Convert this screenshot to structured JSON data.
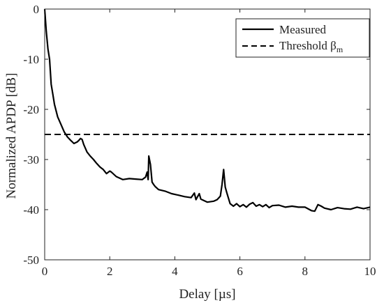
{
  "chart_data": {
    "type": "line",
    "xlabel": "Delay [µs]",
    "ylabel": "Normalized APDP [dB]",
    "xlim": [
      0,
      10
    ],
    "ylim": [
      -50,
      0
    ],
    "xticks": [
      "0",
      "2",
      "4",
      "6",
      "8",
      "10"
    ],
    "yticks": [
      "0",
      "-10",
      "-20",
      "-30",
      "-40",
      "-50"
    ],
    "grid": false,
    "legend_position": "top-right",
    "series": [
      {
        "name": "Measured",
        "style": "solid",
        "color": "#000000",
        "x": [
          0,
          0.05,
          0.1,
          0.15,
          0.2,
          0.25,
          0.3,
          0.4,
          0.5,
          0.6,
          0.7,
          0.8,
          0.9,
          1.0,
          1.05,
          1.1,
          1.15,
          1.2,
          1.3,
          1.4,
          1.5,
          1.6,
          1.7,
          1.8,
          1.9,
          2.0,
          2.05,
          2.2,
          2.4,
          2.6,
          2.8,
          3.0,
          3.1,
          3.15,
          3.18,
          3.2,
          3.25,
          3.3,
          3.35,
          3.4,
          3.5,
          3.7,
          3.9,
          4.1,
          4.3,
          4.5,
          4.6,
          4.65,
          4.7,
          4.75,
          4.8,
          5.0,
          5.2,
          5.3,
          5.4,
          5.45,
          5.5,
          5.55,
          5.6,
          5.7,
          5.8,
          5.9,
          6.0,
          6.1,
          6.2,
          6.3,
          6.4,
          6.5,
          6.6,
          6.7,
          6.8,
          6.9,
          7.0,
          7.2,
          7.4,
          7.6,
          7.8,
          8.0,
          8.2,
          8.3,
          8.4,
          8.5,
          8.6,
          8.8,
          9.0,
          9.2,
          9.4,
          9.6,
          9.8,
          10.0
        ],
        "y": [
          0,
          -4.5,
          -8,
          -10,
          -15,
          -17,
          -19,
          -21.5,
          -23,
          -24.5,
          -25.5,
          -26.2,
          -26.8,
          -26.5,
          -26.2,
          -25.8,
          -26.0,
          -27.0,
          -28.5,
          -29.3,
          -30.0,
          -30.8,
          -31.5,
          -32.0,
          -32.8,
          -32.3,
          -32.5,
          -33.4,
          -34.0,
          -33.8,
          -33.9,
          -34.0,
          -33.5,
          -32.5,
          -34.0,
          -29.3,
          -31.0,
          -34.5,
          -35.0,
          -35.4,
          -36.0,
          -36.3,
          -36.8,
          -37.1,
          -37.4,
          -37.6,
          -36.7,
          -38.0,
          -37.4,
          -36.8,
          -37.9,
          -38.5,
          -38.3,
          -38.0,
          -37.3,
          -35.0,
          -32.0,
          -35.5,
          -36.7,
          -38.8,
          -39.3,
          -38.8,
          -39.4,
          -39.0,
          -39.5,
          -38.9,
          -38.6,
          -39.3,
          -39.0,
          -39.4,
          -39.0,
          -39.6,
          -39.2,
          -39.1,
          -39.5,
          -39.3,
          -39.5,
          -39.5,
          -40.2,
          -40.3,
          -39.0,
          -39.3,
          -39.7,
          -40.0,
          -39.6,
          -39.8,
          -39.9,
          -39.5,
          -39.8,
          -39.5
        ]
      },
      {
        "name": "Threshold β",
        "name_subscript": "m",
        "style": "dashed",
        "color": "#000000",
        "x": [
          0,
          10
        ],
        "y": [
          -25,
          -25
        ]
      }
    ]
  }
}
